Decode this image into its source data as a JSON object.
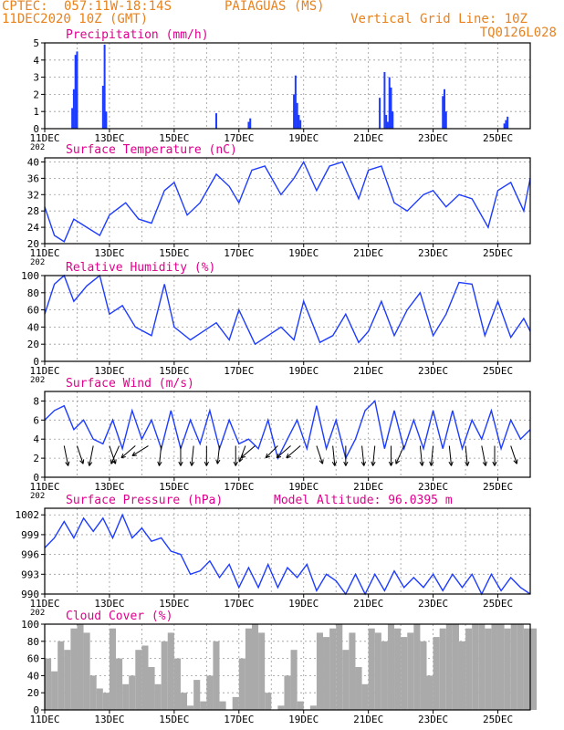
{
  "header": {
    "center": "CPTEC:",
    "coords": "057:11W-18:14S",
    "location": "PAIAGUAS (MS)",
    "date": "11DEC2020 10Z (GMT)",
    "grid_note": "Vertical Grid Line: 10Z",
    "code": "TQ0126L028"
  },
  "colors": {
    "header": "#e8821e",
    "title": "#e0008c",
    "series": "#1e3cff",
    "cloud": "#aaaaaa",
    "grid": "#9a9a9a"
  },
  "x_ticks": [
    "11DEC",
    "13DEC",
    "15DEC",
    "17DEC",
    "19DEC",
    "21DEC",
    "23DEC",
    "25DEC"
  ],
  "x_tick_sub": "202",
  "chart_data": [
    {
      "type": "bar",
      "title": "Precipitation (mm/h)",
      "ylim": [
        0,
        5
      ],
      "yticks": [
        0,
        1,
        2,
        3,
        4,
        5
      ],
      "x_days": [
        0.85,
        0.9,
        0.95,
        1.0,
        1.8,
        1.85,
        1.9,
        5.3,
        6.3,
        6.35,
        7.7,
        7.75,
        7.8,
        7.85,
        7.9,
        10.35,
        10.5,
        10.55,
        10.6,
        10.65,
        10.7,
        10.75,
        12.3,
        12.35,
        12.4,
        14.2,
        14.25,
        14.3
      ],
      "values": [
        1.2,
        2.3,
        4.3,
        4.5,
        2.5,
        4.9,
        1.0,
        0.9,
        0.4,
        0.6,
        2.0,
        3.1,
        1.5,
        0.8,
        0.5,
        1.8,
        3.3,
        0.8,
        0.4,
        3.0,
        2.4,
        1.0,
        1.9,
        2.3,
        1.0,
        0.3,
        0.5,
        0.7
      ]
    },
    {
      "type": "line",
      "title": "Surface Temperature (nC)",
      "ylim": [
        20,
        41
      ],
      "yticks": [
        20,
        24,
        28,
        32,
        36,
        40
      ],
      "x_days": [
        0,
        0.3,
        0.6,
        0.9,
        1.3,
        1.7,
        2.0,
        2.5,
        2.9,
        3.3,
        3.7,
        4.0,
        4.4,
        4.8,
        5.3,
        5.7,
        6.0,
        6.4,
        6.8,
        7.3,
        7.7,
        8.0,
        8.4,
        8.8,
        9.2,
        9.7,
        10.0,
        10.4,
        10.8,
        11.2,
        11.7,
        12.0,
        12.4,
        12.8,
        13.2,
        13.7,
        14.0,
        14.4,
        14.8,
        15.0
      ],
      "values": [
        29,
        22,
        20.5,
        26,
        24,
        22,
        27,
        30,
        26,
        25,
        33,
        35,
        27,
        30,
        37,
        34,
        30,
        38,
        39,
        32,
        36,
        40,
        33,
        39,
        40,
        31,
        38,
        39,
        30,
        28,
        32,
        33,
        29,
        32,
        31,
        24,
        33,
        35,
        28,
        36
      ]
    },
    {
      "type": "line",
      "title": "Relative Humidity (%)",
      "ylim": [
        0,
        100
      ],
      "yticks": [
        0,
        20,
        40,
        60,
        80,
        100
      ],
      "x_days": [
        0,
        0.3,
        0.6,
        0.9,
        1.3,
        1.7,
        2.0,
        2.4,
        2.8,
        3.3,
        3.7,
        4.0,
        4.5,
        4.9,
        5.3,
        5.7,
        6.0,
        6.5,
        6.9,
        7.3,
        7.7,
        8.0,
        8.5,
        8.9,
        9.3,
        9.7,
        10.0,
        10.4,
        10.8,
        11.2,
        11.6,
        12.0,
        12.4,
        12.8,
        13.2,
        13.6,
        14.0,
        14.4,
        14.8,
        15.0
      ],
      "values": [
        55,
        90,
        100,
        70,
        88,
        100,
        55,
        65,
        40,
        30,
        90,
        40,
        25,
        35,
        45,
        25,
        60,
        20,
        30,
        40,
        25,
        70,
        22,
        30,
        55,
        22,
        35,
        70,
        30,
        60,
        80,
        30,
        55,
        92,
        90,
        30,
        70,
        28,
        50,
        35
      ]
    },
    {
      "type": "line",
      "title": "Surface Wind (m/s)",
      "ylim": [
        0,
        9
      ],
      "yticks": [
        0,
        2,
        4,
        6,
        8
      ],
      "x_days": [
        0,
        0.3,
        0.6,
        0.9,
        1.2,
        1.5,
        1.8,
        2.1,
        2.4,
        2.7,
        3.0,
        3.3,
        3.6,
        3.9,
        4.2,
        4.5,
        4.8,
        5.1,
        5.4,
        5.7,
        6.0,
        6.3,
        6.6,
        6.9,
        7.2,
        7.5,
        7.8,
        8.1,
        8.4,
        8.7,
        9.0,
        9.3,
        9.6,
        9.9,
        10.2,
        10.5,
        10.8,
        11.1,
        11.4,
        11.7,
        12.0,
        12.3,
        12.6,
        12.9,
        13.2,
        13.5,
        13.8,
        14.1,
        14.4,
        14.7,
        15.0
      ],
      "values": [
        6,
        7,
        7.5,
        5,
        6,
        4,
        3.5,
        6,
        3,
        7,
        4,
        6,
        3,
        7,
        3,
        6,
        3.5,
        7,
        3,
        6,
        3.5,
        4,
        3,
        6,
        2,
        4,
        6,
        3,
        7.5,
        3,
        6,
        2,
        4,
        7,
        8,
        3,
        7,
        3,
        6,
        3,
        7,
        3,
        7,
        3,
        6,
        4,
        7,
        3,
        6,
        4,
        5
      ],
      "arrows": {
        "x_days": [
          0.6,
          1.0,
          1.5,
          2.0,
          2.3,
          2.8,
          3.2,
          3.6,
          4.2,
          4.6,
          5.0,
          5.4,
          5.9,
          6.2,
          6.5,
          7.2,
          7.6,
          7.9,
          8.4,
          8.9,
          9.3,
          9.8,
          10.2,
          10.7,
          11.1,
          11.6,
          12.0,
          12.5,
          13.0,
          13.5,
          13.9,
          14.4
        ],
        "u": [
          0.2,
          0.3,
          -0.2,
          0.3,
          -0.4,
          -0.7,
          -0.8,
          -0.1,
          0.0,
          -0.1,
          0.0,
          -0.1,
          0.0,
          -0.3,
          -0.7,
          -0.6,
          -0.7,
          -0.7,
          0.3,
          0.1,
          0.0,
          0.1,
          -0.1,
          0.0,
          -0.4,
          0.1,
          -0.1,
          0.1,
          0.1,
          0.2,
          0.0,
          0.3
        ],
        "v": [
          -1.0,
          -0.9,
          -1.0,
          -0.9,
          -0.9,
          -0.6,
          -0.5,
          -1.0,
          -1.0,
          -1.0,
          -1.0,
          -0.9,
          -1.0,
          -0.8,
          -0.6,
          -0.6,
          -0.6,
          -0.6,
          -0.9,
          -1.0,
          -1.0,
          -1.0,
          -1.0,
          -1.0,
          -0.9,
          -1.0,
          -1.0,
          -1.0,
          -1.0,
          -1.0,
          -1.0,
          -0.9
        ]
      }
    },
    {
      "type": "line",
      "title": "Surface Pressure (hPa)",
      "annotation": "Model Altitude: 96.0395 m",
      "ylim": [
        990,
        1003
      ],
      "yticks": [
        990,
        993,
        996,
        999,
        1002
      ],
      "x_days": [
        0,
        0.3,
        0.6,
        0.9,
        1.2,
        1.5,
        1.8,
        2.1,
        2.4,
        2.7,
        3.0,
        3.3,
        3.6,
        3.9,
        4.2,
        4.5,
        4.8,
        5.1,
        5.4,
        5.7,
        6.0,
        6.3,
        6.6,
        6.9,
        7.2,
        7.5,
        7.8,
        8.1,
        8.4,
        8.7,
        9.0,
        9.3,
        9.6,
        9.9,
        10.2,
        10.5,
        10.8,
        11.1,
        11.4,
        11.7,
        12.0,
        12.3,
        12.6,
        12.9,
        13.2,
        13.5,
        13.8,
        14.1,
        14.4,
        14.7,
        15.0
      ],
      "values": [
        997,
        998.5,
        1001,
        998.5,
        1001.5,
        999.5,
        1001.5,
        998.5,
        1002,
        998.5,
        1000,
        998,
        998.5,
        996.5,
        996,
        993,
        993.5,
        995,
        992.5,
        994.5,
        991,
        994,
        991,
        994.5,
        991,
        994,
        992.5,
        994.5,
        990.5,
        993,
        992,
        990,
        993,
        990,
        993,
        990.5,
        993.5,
        991,
        992.5,
        991,
        993,
        990.5,
        993,
        991,
        993,
        990,
        993,
        990.5,
        992.5,
        991,
        990
      ]
    },
    {
      "type": "area",
      "title": "Cloud Cover (%)",
      "ylim": [
        0,
        100
      ],
      "yticks": [
        0,
        20,
        40,
        60,
        80,
        100
      ],
      "x_days": [
        0,
        0.2,
        0.4,
        0.6,
        0.8,
        1.0,
        1.2,
        1.4,
        1.6,
        1.8,
        2.0,
        2.2,
        2.4,
        2.6,
        2.8,
        3.0,
        3.2,
        3.4,
        3.6,
        3.8,
        4.0,
        4.2,
        4.4,
        4.6,
        4.8,
        5.0,
        5.2,
        5.4,
        5.6,
        5.8,
        6.0,
        6.2,
        6.4,
        6.6,
        6.8,
        7.0,
        7.2,
        7.4,
        7.6,
        7.8,
        8.0,
        8.2,
        8.4,
        8.6,
        8.8,
        9.0,
        9.2,
        9.4,
        9.6,
        9.8,
        10.0,
        10.2,
        10.4,
        10.6,
        10.8,
        11.0,
        11.2,
        11.4,
        11.6,
        11.8,
        12.0,
        12.2,
        12.4,
        12.6,
        12.8,
        13.0,
        13.2,
        13.4,
        13.6,
        13.8,
        14.0,
        14.2,
        14.4,
        14.6,
        14.8,
        15.0
      ],
      "values": [
        60,
        45,
        80,
        70,
        95,
        100,
        90,
        40,
        25,
        20,
        95,
        60,
        30,
        40,
        70,
        75,
        50,
        30,
        80,
        90,
        60,
        20,
        5,
        35,
        10,
        40,
        80,
        10,
        0,
        15,
        60,
        95,
        100,
        90,
        20,
        0,
        5,
        40,
        70,
        10,
        0,
        5,
        90,
        85,
        95,
        100,
        70,
        90,
        50,
        30,
        95,
        90,
        80,
        100,
        95,
        85,
        90,
        100,
        80,
        40,
        85,
        95,
        100,
        100,
        80,
        95,
        100,
        100,
        95,
        100,
        100,
        95,
        100,
        100,
        95,
        95
      ]
    }
  ]
}
